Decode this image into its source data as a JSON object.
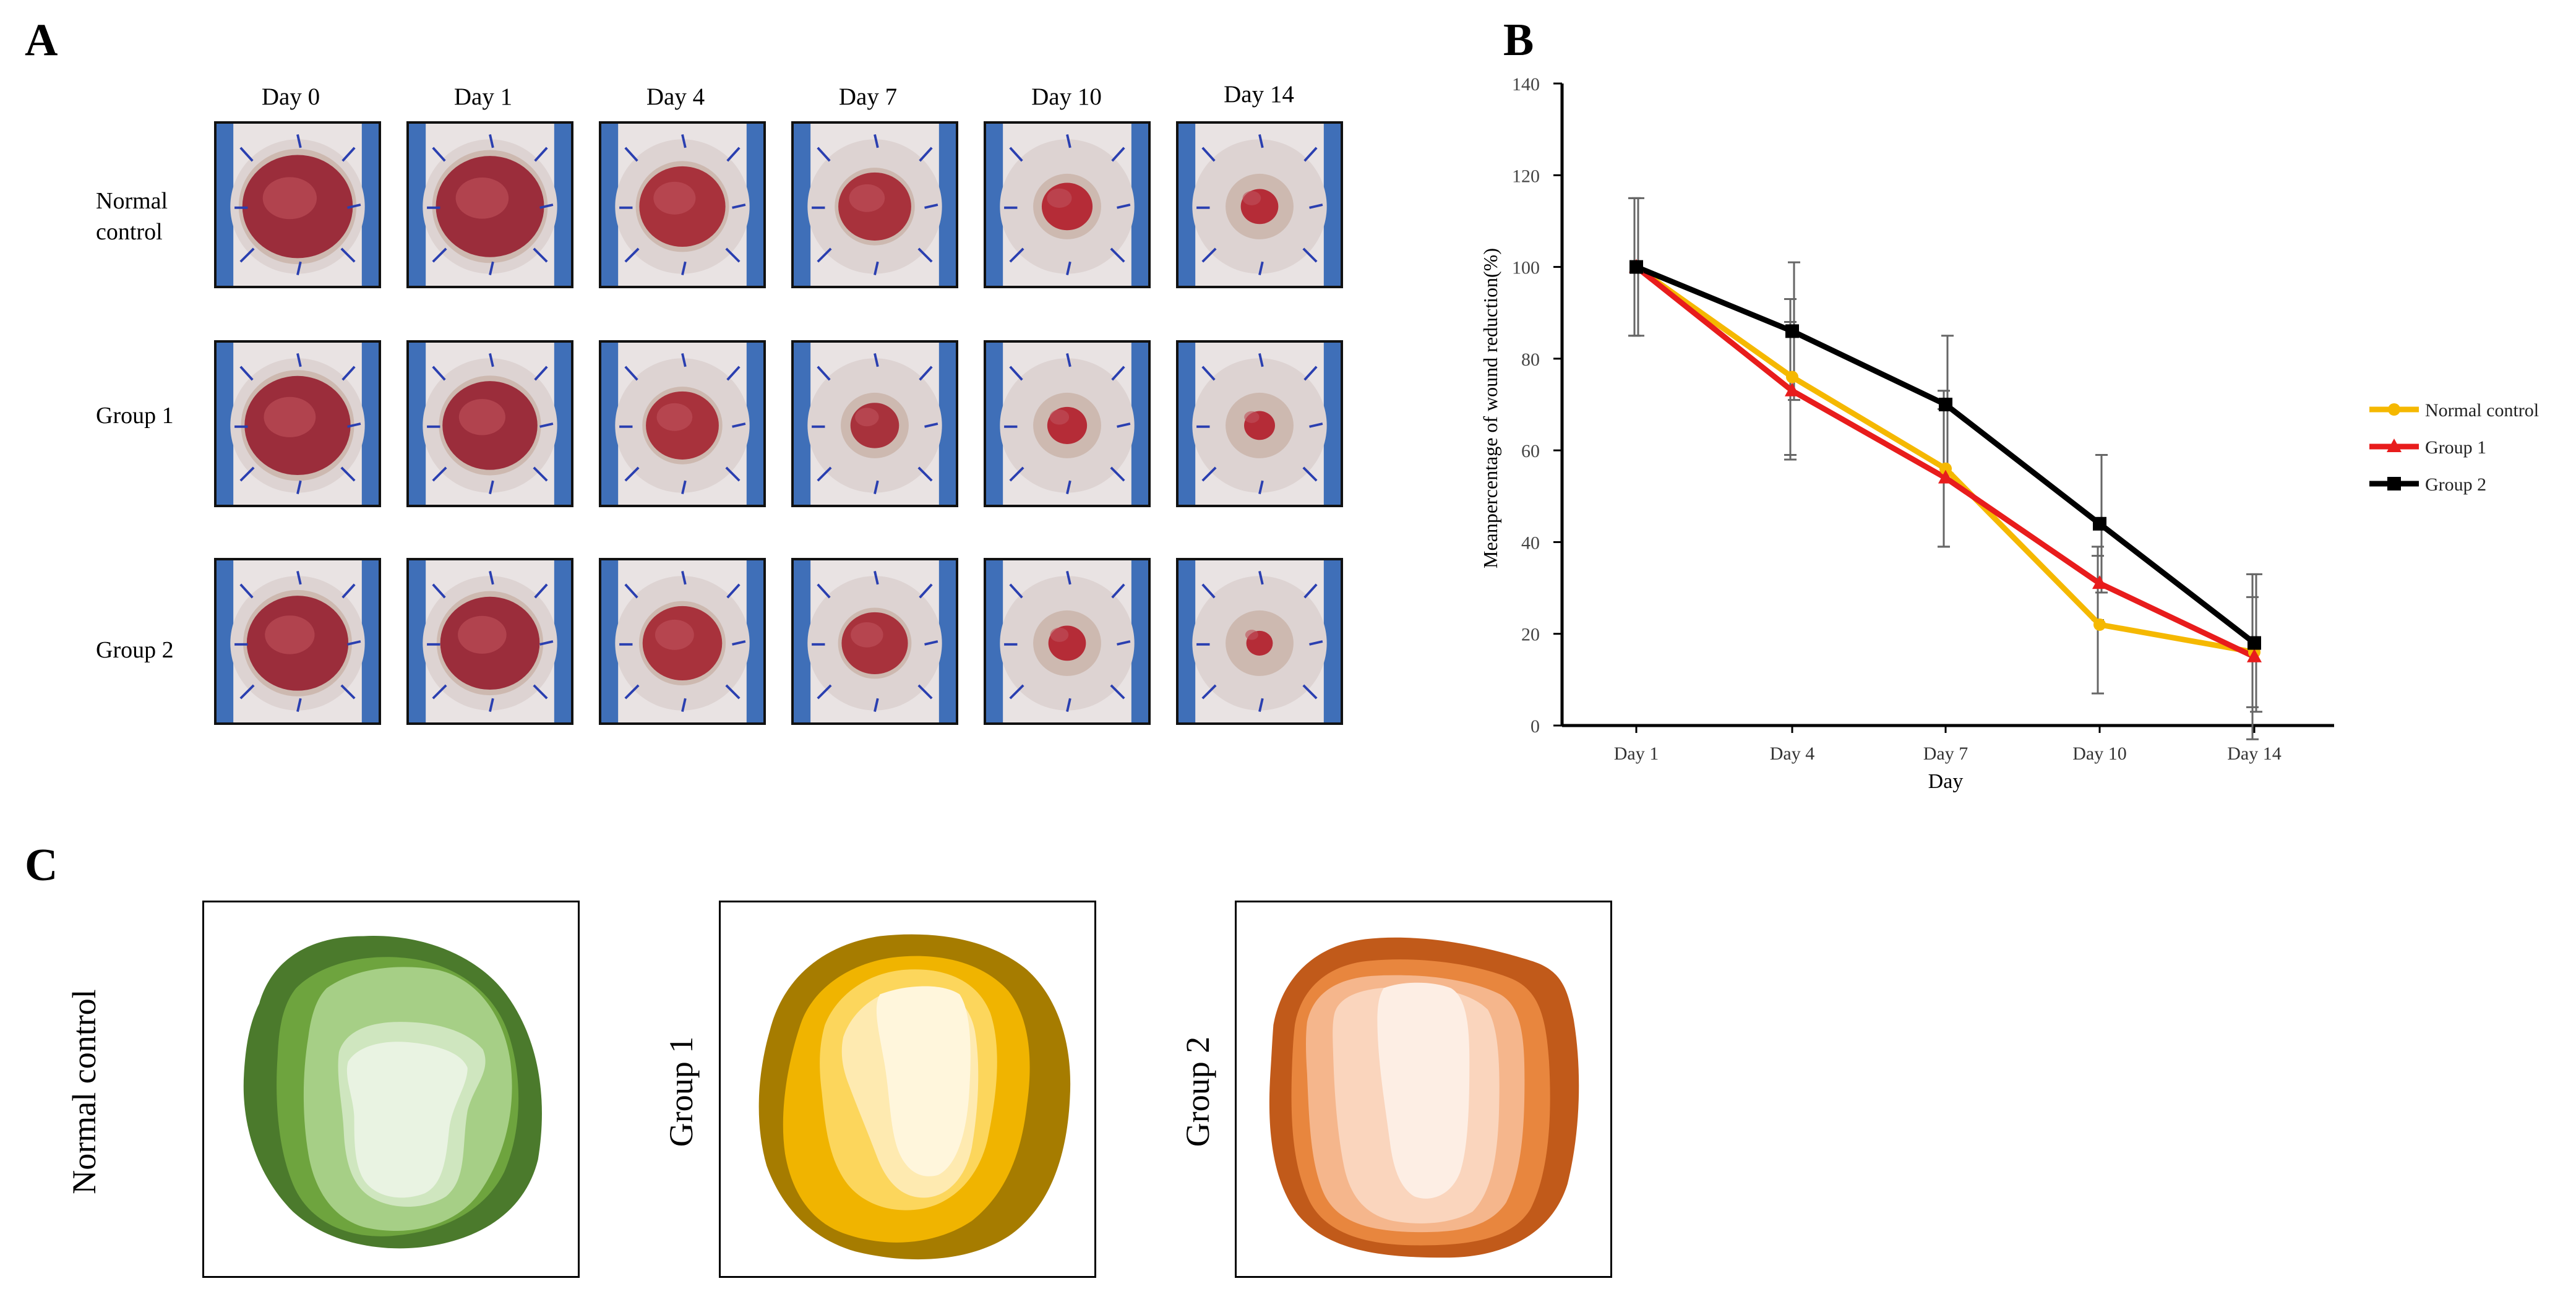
{
  "panels": {
    "a": "A",
    "b": "B",
    "c": "C"
  },
  "panel_a": {
    "days": [
      "Day 0",
      "Day 1",
      "Day 4",
      "Day 7",
      "Day 10",
      "Day 14"
    ],
    "rows": [
      {
        "label_line1": "Normal",
        "label_line2": "control"
      },
      {
        "label_line1": "Group 1",
        "label_line2": ""
      },
      {
        "label_line1": "Group 2",
        "label_line2": ""
      }
    ],
    "wound_size_fraction": [
      [
        1.0,
        0.98,
        0.78,
        0.66,
        0.46,
        0.34
      ],
      [
        0.96,
        0.86,
        0.66,
        0.44,
        0.36,
        0.28
      ],
      [
        0.92,
        0.9,
        0.72,
        0.6,
        0.34,
        0.24
      ]
    ]
  },
  "chart_data": {
    "type": "line",
    "categories": [
      "Day 1",
      "Day 4",
      "Day 7",
      "Day 10",
      "Day 14"
    ],
    "xlabel": "Day",
    "ylabel": "Meanpercentage  of wound reduction(%)",
    "ylim": [
      0,
      140
    ],
    "yticks": [
      "0",
      "20",
      "40",
      "60",
      "80",
      "100",
      "120",
      "140"
    ],
    "legend_position": "right",
    "series": [
      {
        "name": "Normal control",
        "color": "#f5b800",
        "marker": "circle",
        "values": [
          100,
          76,
          56,
          22,
          16
        ],
        "errors": [
          15,
          17,
          17,
          15,
          12
        ]
      },
      {
        "name": "Group 1",
        "color": "#e81c1c",
        "marker": "triangle",
        "values": [
          100,
          73,
          54,
          31,
          15
        ],
        "errors": [
          15,
          15,
          15,
          8,
          18
        ]
      },
      {
        "name": "Group 2",
        "color": "#000000",
        "marker": "square",
        "values": [
          100,
          86,
          70,
          44,
          18
        ],
        "errors": [
          15,
          15,
          15,
          15,
          15
        ]
      }
    ]
  },
  "panel_c": {
    "labels": [
      "Normal control",
      "Group 1",
      "Group 2"
    ],
    "palettes": [
      [
        "#4b7a2c",
        "#6ea43e",
        "#a6cf86",
        "#cfe6bf",
        "#e9f3e2"
      ],
      [
        "#a67c00",
        "#f0b400",
        "#fcd65c",
        "#feeab0",
        "#fff6dc"
      ],
      [
        "#c15a1a",
        "#e8863e",
        "#f5b68c",
        "#fad5bd",
        "#fdeee4"
      ]
    ]
  }
}
